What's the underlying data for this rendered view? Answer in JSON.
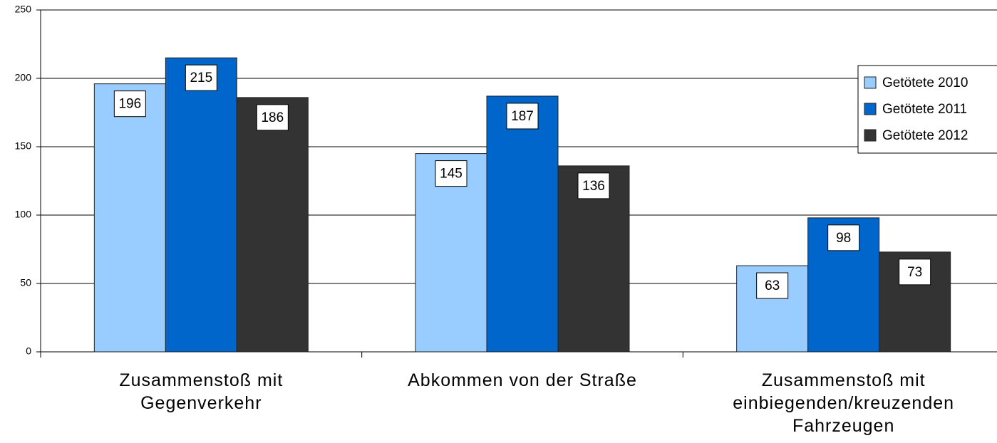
{
  "chart_data": {
    "type": "bar",
    "categories": [
      "Zusammenstoß mit\nGegenverkehr",
      "Abkommen von der Straße",
      "Zusammenstoß mit\neinbiegenden/kreuzenden\nFahrzeugen"
    ],
    "series": [
      {
        "name": "Getötete 2010",
        "color": "#99ccff",
        "values": [
          196,
          145,
          63
        ]
      },
      {
        "name": "Getötete 2011",
        "color": "#0066cc",
        "values": [
          215,
          187,
          98
        ]
      },
      {
        "name": "Getötete 2012",
        "color": "#333333",
        "values": [
          186,
          136,
          73
        ]
      }
    ],
    "ylim": [
      0,
      250
    ],
    "yticks": [
      0,
      50,
      100,
      150,
      200,
      250
    ],
    "grid": true,
    "legend": "right"
  }
}
